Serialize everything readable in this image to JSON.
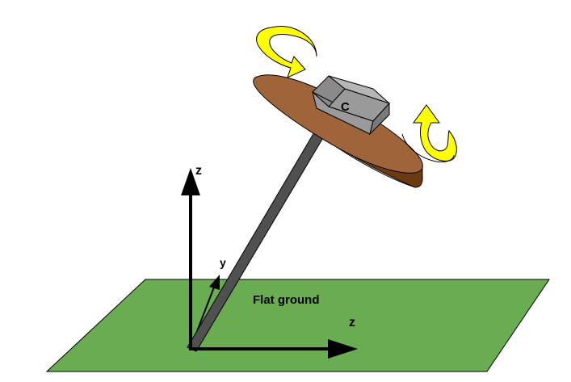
{
  "labels": {
    "disc_label": "C",
    "ground_label": "Flat ground",
    "vertical_axis": "z",
    "depth_axis": "y",
    "horizontal_axis": "z"
  },
  "colors": {
    "ground": "#6aac52",
    "disc_top": "#a0643a",
    "disc_edge": "#6b3a10",
    "rod": "#505050",
    "box": "#9a9a9a",
    "rotation_arrow": "#ffff00",
    "axis": "#000000"
  },
  "icons": {
    "rotation_top": "curved-rotation-arrow-icon",
    "rotation_right": "curved-rotation-arrow-icon"
  }
}
